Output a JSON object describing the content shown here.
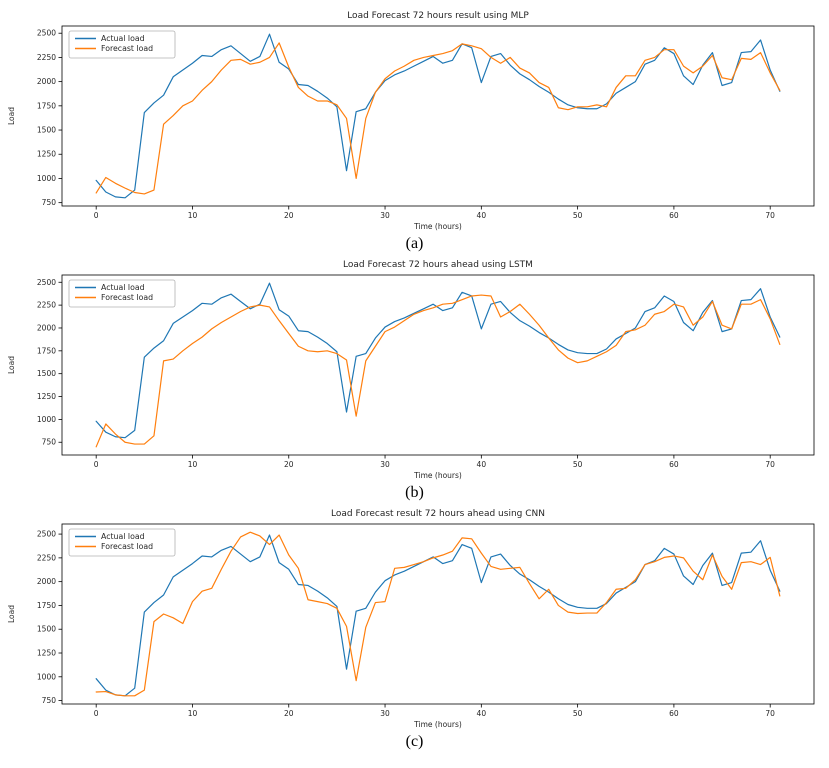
{
  "figure": {
    "legend_labels": [
      "Actual load",
      "Forecast load"
    ],
    "colors": {
      "actual": "#1f77b4",
      "forecast": "#ff7f0e",
      "spine": "#000000",
      "tick_text": "#262626",
      "legend_border": "#b3b3b3",
      "background": "#ffffff"
    }
  },
  "chart_data": [
    {
      "type": "line",
      "title": "Load Forecast 72 hours result using MLP",
      "caption": "(a)",
      "xlabel": "Time (hours)",
      "ylabel": "Load",
      "legend_position": "upper left",
      "grid": false,
      "xticks": [
        0,
        10,
        20,
        30,
        40,
        50,
        60,
        70
      ],
      "yticks": [
        750,
        1000,
        1250,
        1500,
        1750,
        2000,
        2250,
        2500
      ],
      "x": [
        0,
        1,
        2,
        3,
        4,
        5,
        6,
        7,
        8,
        9,
        10,
        11,
        12,
        13,
        14,
        15,
        16,
        17,
        18,
        19,
        20,
        21,
        22,
        23,
        24,
        25,
        26,
        27,
        28,
        29,
        30,
        31,
        32,
        33,
        34,
        35,
        36,
        37,
        38,
        39,
        40,
        41,
        42,
        43,
        44,
        45,
        46,
        47,
        48,
        49,
        50,
        51,
        52,
        53,
        54,
        55,
        56,
        57,
        58,
        59,
        60,
        61,
        62,
        63,
        64,
        65,
        66,
        67,
        68,
        69,
        70,
        71
      ],
      "series": [
        {
          "name": "Actual load",
          "color": "#1f77b4",
          "values": [
            980,
            860,
            810,
            800,
            880,
            1680,
            1780,
            1860,
            2050,
            2120,
            2190,
            2270,
            2260,
            2330,
            2370,
            2290,
            2210,
            2260,
            2490,
            2200,
            2130,
            1970,
            1960,
            1900,
            1830,
            1740,
            1080,
            1690,
            1720,
            1890,
            2010,
            2070,
            2110,
            2160,
            2210,
            2260,
            2190,
            2220,
            2390,
            2350,
            1990,
            2260,
            2290,
            2170,
            2080,
            2020,
            1950,
            1890,
            1820,
            1760,
            1730,
            1720,
            1720,
            1770,
            1880,
            1940,
            2000,
            2180,
            2220,
            2350,
            2290,
            2060,
            1970,
            2170,
            2300,
            1960,
            1990,
            2300,
            2310,
            2430,
            2120,
            1900
          ]
        },
        {
          "name": "Forecast load",
          "color": "#ff7f0e",
          "values": [
            850,
            1010,
            950,
            900,
            855,
            840,
            880,
            1560,
            1650,
            1750,
            1800,
            1910,
            2000,
            2120,
            2220,
            2230,
            2180,
            2200,
            2250,
            2400,
            2150,
            1940,
            1850,
            1800,
            1800,
            1760,
            1620,
            1000,
            1620,
            1890,
            2030,
            2110,
            2160,
            2220,
            2250,
            2270,
            2290,
            2320,
            2390,
            2370,
            2340,
            2250,
            2190,
            2250,
            2140,
            2090,
            1990,
            1940,
            1730,
            1710,
            1740,
            1740,
            1760,
            1740,
            1940,
            2060,
            2060,
            2220,
            2250,
            2330,
            2330,
            2160,
            2090,
            2160,
            2270,
            2040,
            2020,
            2240,
            2230,
            2300,
            2090,
            1910
          ]
        }
      ]
    },
    {
      "type": "line",
      "title": "Load Forecast 72 hours ahead using LSTM",
      "caption": "(b)",
      "xlabel": "Time (hours)",
      "ylabel": "Load",
      "legend_position": "upper left",
      "grid": false,
      "xticks": [
        0,
        10,
        20,
        30,
        40,
        50,
        60,
        70
      ],
      "yticks": [
        750,
        1000,
        1250,
        1500,
        1750,
        2000,
        2250,
        2500
      ],
      "x": [
        0,
        1,
        2,
        3,
        4,
        5,
        6,
        7,
        8,
        9,
        10,
        11,
        12,
        13,
        14,
        15,
        16,
        17,
        18,
        19,
        20,
        21,
        22,
        23,
        24,
        25,
        26,
        27,
        28,
        29,
        30,
        31,
        32,
        33,
        34,
        35,
        36,
        37,
        38,
        39,
        40,
        41,
        42,
        43,
        44,
        45,
        46,
        47,
        48,
        49,
        50,
        51,
        52,
        53,
        54,
        55,
        56,
        57,
        58,
        59,
        60,
        61,
        62,
        63,
        64,
        65,
        66,
        67,
        68,
        69,
        70,
        71
      ],
      "series": [
        {
          "name": "Actual load",
          "color": "#1f77b4",
          "values": [
            980,
            860,
            810,
            800,
            880,
            1680,
            1780,
            1860,
            2050,
            2120,
            2190,
            2270,
            2260,
            2330,
            2370,
            2290,
            2210,
            2260,
            2490,
            2200,
            2130,
            1970,
            1960,
            1900,
            1830,
            1740,
            1080,
            1690,
            1720,
            1890,
            2010,
            2070,
            2110,
            2160,
            2210,
            2260,
            2190,
            2220,
            2390,
            2350,
            1990,
            2260,
            2290,
            2170,
            2080,
            2020,
            1950,
            1890,
            1820,
            1760,
            1730,
            1720,
            1720,
            1770,
            1880,
            1940,
            2000,
            2180,
            2220,
            2350,
            2290,
            2060,
            1970,
            2170,
            2300,
            1960,
            1990,
            2300,
            2310,
            2430,
            2120,
            1900
          ]
        },
        {
          "name": "Forecast load",
          "color": "#ff7f0e",
          "values": [
            700,
            950,
            840,
            750,
            730,
            730,
            820,
            1640,
            1660,
            1750,
            1830,
            1900,
            1990,
            2060,
            2120,
            2180,
            2230,
            2250,
            2230,
            2080,
            1940,
            1800,
            1750,
            1740,
            1750,
            1720,
            1650,
            1035,
            1640,
            1800,
            1960,
            2010,
            2080,
            2150,
            2190,
            2220,
            2260,
            2270,
            2310,
            2350,
            2360,
            2350,
            2120,
            2180,
            2260,
            2150,
            2030,
            1890,
            1760,
            1670,
            1620,
            1640,
            1690,
            1740,
            1810,
            1960,
            1980,
            2030,
            2150,
            2180,
            2260,
            2230,
            2030,
            2120,
            2290,
            2030,
            1990,
            2260,
            2260,
            2310,
            2100,
            1820
          ]
        }
      ]
    },
    {
      "type": "line",
      "title": "Load Forecast result 72 hours ahead using CNN",
      "caption": "(c)",
      "xlabel": "Time (hours)",
      "ylabel": "Load",
      "legend_position": "upper left",
      "grid": false,
      "xticks": [
        0,
        10,
        20,
        30,
        40,
        50,
        60,
        70
      ],
      "yticks": [
        750,
        1000,
        1250,
        1500,
        1750,
        2000,
        2250,
        2500
      ],
      "x": [
        0,
        1,
        2,
        3,
        4,
        5,
        6,
        7,
        8,
        9,
        10,
        11,
        12,
        13,
        14,
        15,
        16,
        17,
        18,
        19,
        20,
        21,
        22,
        23,
        24,
        25,
        26,
        27,
        28,
        29,
        30,
        31,
        32,
        33,
        34,
        35,
        36,
        37,
        38,
        39,
        40,
        41,
        42,
        43,
        44,
        45,
        46,
        47,
        48,
        49,
        50,
        51,
        52,
        53,
        54,
        55,
        56,
        57,
        58,
        59,
        60,
        61,
        62,
        63,
        64,
        65,
        66,
        67,
        68,
        69,
        70,
        71
      ],
      "series": [
        {
          "name": "Actual load",
          "color": "#1f77b4",
          "values": [
            980,
            860,
            810,
            800,
            880,
            1680,
            1780,
            1860,
            2050,
            2120,
            2190,
            2270,
            2260,
            2330,
            2370,
            2290,
            2210,
            2260,
            2490,
            2200,
            2130,
            1970,
            1960,
            1900,
            1830,
            1740,
            1080,
            1690,
            1720,
            1890,
            2010,
            2070,
            2110,
            2160,
            2210,
            2260,
            2190,
            2220,
            2390,
            2350,
            1990,
            2260,
            2290,
            2170,
            2080,
            2020,
            1950,
            1890,
            1820,
            1760,
            1730,
            1720,
            1720,
            1770,
            1880,
            1940,
            2000,
            2180,
            2220,
            2350,
            2290,
            2060,
            1970,
            2170,
            2300,
            1960,
            1990,
            2300,
            2310,
            2430,
            2120,
            1900
          ]
        },
        {
          "name": "Forecast load",
          "color": "#ff7f0e",
          "values": [
            840,
            845,
            810,
            800,
            800,
            860,
            1580,
            1660,
            1620,
            1560,
            1790,
            1900,
            1930,
            2130,
            2320,
            2470,
            2520,
            2480,
            2390,
            2490,
            2280,
            2140,
            1810,
            1790,
            1770,
            1720,
            1530,
            960,
            1520,
            1780,
            1790,
            2140,
            2150,
            2180,
            2210,
            2250,
            2280,
            2320,
            2460,
            2450,
            2300,
            2160,
            2130,
            2140,
            2150,
            1980,
            1820,
            1920,
            1750,
            1680,
            1665,
            1670,
            1670,
            1780,
            1920,
            1930,
            2020,
            2180,
            2210,
            2255,
            2270,
            2250,
            2110,
            2020,
            2280,
            2055,
            1920,
            2200,
            2210,
            2180,
            2255,
            1850
          ]
        }
      ]
    }
  ]
}
